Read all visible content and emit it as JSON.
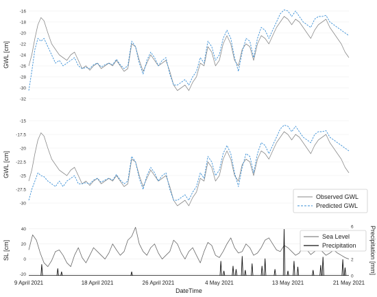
{
  "chart_data": [
    {
      "type": "line",
      "panel": "top",
      "ylabel": "GWL [cm]",
      "ylim": [
        -33,
        -15
      ],
      "yticks": [
        -16,
        -18,
        -20,
        -22,
        -24,
        -26,
        -28,
        -30,
        -32
      ],
      "grid": true,
      "series": [
        {
          "key": "observed",
          "color": "#8a8a8a",
          "style": "solid",
          "x": [
            0,
            0.4,
            0.8,
            1.2,
            1.6,
            2.0,
            2.5,
            3.0,
            3.5,
            4.0,
            4.5,
            5,
            5.5,
            6,
            6.5,
            7,
            7.5,
            8,
            8.5,
            9,
            9.5,
            10,
            10.5,
            11,
            11.5,
            12,
            12.5,
            13,
            13.5,
            14,
            14.5,
            15,
            15.5,
            16,
            16.5,
            17,
            17.5,
            18,
            18.5,
            19,
            19.5,
            20,
            20.5,
            21,
            21.5,
            22,
            22.5,
            23,
            23.5,
            24,
            24.5,
            25,
            25.5,
            26,
            26.5,
            27,
            27.5,
            28,
            28.5,
            29,
            29.5,
            30,
            30.5,
            31,
            31.5,
            32,
            32.5,
            33,
            33.5,
            34,
            34.5,
            35,
            35.5,
            36,
            36.5,
            37,
            37.5,
            38,
            38.5,
            39,
            39.5,
            40,
            40.5,
            41,
            41.5,
            42
          ],
          "y": [
            -26,
            -24,
            -21,
            -18.5,
            -17.2,
            -17.8,
            -20,
            -22,
            -23,
            -24,
            -24.5,
            -25,
            -24,
            -23.5,
            -25,
            -26.5,
            -26,
            -26.8,
            -26,
            -25.5,
            -26.5,
            -26,
            -25.5,
            -26,
            -25,
            -26,
            -27,
            -26.5,
            -22,
            -22.5,
            -25,
            -27,
            -25.5,
            -24,
            -25,
            -26,
            -25.5,
            -25,
            -27,
            -29.5,
            -30.5,
            -30,
            -29.5,
            -30.5,
            -29,
            -28,
            -25.5,
            -26,
            -22.5,
            -23.5,
            -26,
            -25,
            -22,
            -20.5,
            -22,
            -25,
            -26,
            -23,
            -22,
            -22.5,
            -25,
            -22,
            -20.5,
            -21,
            -22,
            -20.5,
            -19,
            -18,
            -17,
            -17.5,
            -18.5,
            -17.5,
            -18,
            -19,
            -20,
            -21,
            -19.5,
            -18.5,
            -18,
            -17.5,
            -19,
            -20,
            -21,
            -22,
            -23.5,
            -24.5
          ]
        },
        {
          "key": "predicted",
          "color": "#3a8fd6",
          "style": "dashed",
          "x": [
            0,
            0.4,
            0.8,
            1.2,
            1.6,
            2.0,
            2.5,
            3.0,
            3.5,
            4.0,
            4.5,
            5,
            5.5,
            6,
            6.5,
            7,
            7.5,
            8,
            8.5,
            9,
            9.5,
            10,
            10.5,
            11,
            11.5,
            12,
            12.5,
            13,
            13.5,
            14,
            14.5,
            15,
            15.5,
            16,
            16.5,
            17,
            17.5,
            18,
            18.5,
            19,
            19.5,
            20,
            20.5,
            21,
            21.5,
            22,
            22.5,
            23,
            23.5,
            24,
            24.5,
            25,
            25.5,
            26,
            26.5,
            27,
            27.5,
            28,
            28.5,
            29,
            29.5,
            30,
            30.5,
            31,
            31.5,
            32,
            32.5,
            33,
            33.5,
            34,
            34.5,
            35,
            35.5,
            36,
            36.5,
            37,
            37.5,
            38,
            38.5,
            39,
            39.5,
            40,
            40.5,
            41,
            41.5,
            42
          ],
          "y": [
            -30.5,
            -27,
            -23,
            -21,
            -21.5,
            -21,
            -22.5,
            -24,
            -25.5,
            -25,
            -26,
            -25.5,
            -25,
            -24.5,
            -26,
            -26.5,
            -26.3,
            -26.5,
            -25.8,
            -25.5,
            -26.2,
            -25.8,
            -25.5,
            -25.8,
            -24.8,
            -25.8,
            -26.5,
            -26,
            -21.5,
            -22.5,
            -25.5,
            -27.5,
            -25,
            -23.5,
            -24.5,
            -26,
            -25,
            -24.5,
            -27.5,
            -29.5,
            -29.5,
            -29,
            -28.5,
            -29.5,
            -28,
            -27,
            -24.5,
            -25.5,
            -21.5,
            -22.5,
            -25,
            -24,
            -21,
            -19.5,
            -21,
            -24.5,
            -27,
            -23.5,
            -21,
            -21.5,
            -24.5,
            -21,
            -19,
            -19.5,
            -21,
            -19.5,
            -18,
            -16.5,
            -15.8,
            -16,
            -17,
            -16,
            -17,
            -18,
            -18.5,
            -19,
            -17.5,
            -17,
            -17,
            -16.8,
            -18,
            -18.5,
            -19,
            -19.5,
            -20,
            -20.5
          ]
        }
      ]
    },
    {
      "type": "line",
      "panel": "middle",
      "ylabel": "GWL [cm]",
      "ylim": [
        -32,
        -14
      ],
      "yticks": [
        -15.0,
        -17.5,
        -20.0,
        -22.5,
        -25.0,
        -27.5,
        -30.0
      ],
      "grid": true,
      "legend_position": "bottom-right",
      "series": [
        {
          "key": "observed",
          "name": "Observed GWL",
          "color": "#8a8a8a",
          "style": "solid",
          "x": [
            0,
            0.4,
            0.8,
            1.2,
            1.6,
            2.0,
            2.5,
            3.0,
            3.5,
            4.0,
            4.5,
            5,
            5.5,
            6,
            6.5,
            7,
            7.5,
            8,
            8.5,
            9,
            9.5,
            10,
            10.5,
            11,
            11.5,
            12,
            12.5,
            13,
            13.5,
            14,
            14.5,
            15,
            15.5,
            16,
            16.5,
            17,
            17.5,
            18,
            18.5,
            19,
            19.5,
            20,
            20.5,
            21,
            21.5,
            22,
            22.5,
            23,
            23.5,
            24,
            24.5,
            25,
            25.5,
            26,
            26.5,
            27,
            27.5,
            28,
            28.5,
            29,
            29.5,
            30,
            30.5,
            31,
            31.5,
            32,
            32.5,
            33,
            33.5,
            34,
            34.5,
            35,
            35.5,
            36,
            36.5,
            37,
            37.5,
            38,
            38.5,
            39,
            39.5,
            40,
            40.5,
            41,
            41.5,
            42
          ],
          "y": [
            -26,
            -24,
            -21,
            -18.5,
            -17.2,
            -17.8,
            -20,
            -22,
            -23,
            -24,
            -24.5,
            -25,
            -24,
            -23.5,
            -25,
            -26.5,
            -26,
            -26.8,
            -26,
            -25.5,
            -26.5,
            -26,
            -25.5,
            -26,
            -25,
            -26,
            -27,
            -26.5,
            -22,
            -22.5,
            -25,
            -27,
            -25.5,
            -24,
            -25,
            -26,
            -25.5,
            -25,
            -27,
            -29.5,
            -30.5,
            -30,
            -29.5,
            -30.5,
            -29,
            -28,
            -25.5,
            -26,
            -22.5,
            -23.5,
            -26,
            -25,
            -22,
            -20.5,
            -22,
            -25,
            -26,
            -23,
            -22,
            -22.5,
            -25,
            -22,
            -20.5,
            -21,
            -22,
            -20.5,
            -19,
            -18,
            -17,
            -17.5,
            -18.5,
            -17.5,
            -18,
            -19,
            -20,
            -21,
            -19.5,
            -18.5,
            -18,
            -17.5,
            -19,
            -20,
            -21,
            -22,
            -23.5,
            -24.5
          ]
        },
        {
          "key": "predicted",
          "name": "Predicted GWL",
          "color": "#3a8fd6",
          "style": "dashed",
          "x": [
            0,
            0.4,
            0.8,
            1.2,
            1.6,
            2.0,
            2.5,
            3.0,
            3.5,
            4.0,
            4.5,
            5,
            5.5,
            6,
            6.5,
            7,
            7.5,
            8,
            8.5,
            9,
            9.5,
            10,
            10.5,
            11,
            11.5,
            12,
            12.5,
            13,
            13.5,
            14,
            14.5,
            15,
            15.5,
            16,
            16.5,
            17,
            17.5,
            18,
            18.5,
            19,
            19.5,
            20,
            20.5,
            21,
            21.5,
            22,
            22.5,
            23,
            23.5,
            24,
            24.5,
            25,
            25.5,
            26,
            26.5,
            27,
            27.5,
            28,
            28.5,
            29,
            29.5,
            30,
            30.5,
            31,
            31.5,
            32,
            32.5,
            33,
            33.5,
            34,
            34.5,
            35,
            35.5,
            36,
            36.5,
            37,
            37.5,
            38,
            38.5,
            39,
            39.5,
            40,
            40.5,
            41,
            41.5,
            42
          ],
          "y": [
            -29.5,
            -27.5,
            -26,
            -24.5,
            -25,
            -25.2,
            -26,
            -26.5,
            -27,
            -26,
            -27,
            -26,
            -25.5,
            -25,
            -26.5,
            -26.5,
            -26.3,
            -26.5,
            -25.8,
            -25.5,
            -26.2,
            -25.8,
            -25.5,
            -25.8,
            -24.8,
            -25.8,
            -26.5,
            -26,
            -21.5,
            -22.5,
            -25.5,
            -27.5,
            -25,
            -23.5,
            -24.5,
            -26,
            -25,
            -24.5,
            -27.5,
            -29.5,
            -29.5,
            -29,
            -28.5,
            -29.5,
            -28,
            -27,
            -24.5,
            -25.5,
            -21.5,
            -22.5,
            -25,
            -24,
            -21,
            -19.5,
            -21,
            -24.5,
            -27,
            -23.5,
            -21,
            -21.5,
            -24.5,
            -21,
            -19,
            -19.5,
            -21,
            -19.5,
            -18,
            -16.5,
            -15.8,
            -16,
            -17,
            -16,
            -17,
            -18,
            -18.5,
            -19,
            -17.5,
            -17,
            -17,
            -16.8,
            -18,
            -18.5,
            -19,
            -19.5,
            -20,
            -20.5
          ]
        }
      ]
    },
    {
      "type": "line",
      "panel": "bottom",
      "xlabel": "DateTime",
      "ylabel": "SL [cm]",
      "ylabel_right": "Precipitation [mm]",
      "ylim": [
        -22,
        45
      ],
      "yticks": [
        40,
        20,
        0,
        -20
      ],
      "ylim_right": [
        0,
        6.2
      ],
      "yticks_right": [
        6,
        4,
        2,
        0
      ],
      "grid": true,
      "legend_position": "top-right",
      "xticks": [
        {
          "day": 0,
          "label": "9 April 2021"
        },
        {
          "day": 9,
          "label": "18 April 2021"
        },
        {
          "day": 17,
          "label": "26 April 2021"
        },
        {
          "day": 25,
          "label": "4 May 2021"
        },
        {
          "day": 34,
          "label": "13 May 2021"
        },
        {
          "day": 42,
          "label": "21 May 2021"
        }
      ],
      "series": [
        {
          "key": "sealevel",
          "name": "Sea Level",
          "color": "#666666",
          "style": "solid",
          "x": [
            0,
            0.5,
            1,
            1.5,
            2,
            2.5,
            3,
            3.5,
            4,
            4.5,
            5,
            5.5,
            6,
            6.5,
            7,
            7.5,
            8,
            8.5,
            9,
            9.5,
            10,
            10.5,
            11,
            11.5,
            12,
            12.5,
            13,
            13.5,
            14,
            14.5,
            15,
            15.5,
            16,
            16.5,
            17,
            17.5,
            18,
            18.5,
            19,
            19.5,
            20,
            20.5,
            21,
            21.5,
            22,
            22.5,
            23,
            23.5,
            24,
            24.5,
            25,
            25.5,
            26,
            26.5,
            27,
            27.5,
            28,
            28.5,
            29,
            29.5,
            30,
            30.5,
            31,
            31.5,
            32,
            32.5,
            33,
            33.5,
            34,
            34.5,
            35,
            35.5,
            36,
            36.5,
            37,
            37.5,
            38,
            38.5,
            39,
            39.5,
            40,
            40.5,
            41,
            41.5,
            42
          ],
          "y": [
            12,
            32,
            25,
            8,
            -5,
            -10,
            -2,
            10,
            12,
            5,
            -5,
            -10,
            5,
            15,
            2,
            -5,
            5,
            15,
            10,
            5,
            0,
            8,
            20,
            12,
            5,
            10,
            25,
            30,
            42,
            20,
            10,
            5,
            15,
            20,
            8,
            0,
            5,
            10,
            25,
            20,
            8,
            0,
            10,
            15,
            5,
            -5,
            10,
            22,
            18,
            5,
            2,
            10,
            20,
            28,
            15,
            8,
            10,
            20,
            15,
            5,
            8,
            15,
            25,
            28,
            20,
            12,
            10,
            18,
            15,
            10,
            5,
            8,
            18,
            12,
            6,
            10,
            15,
            10,
            5,
            8,
            12,
            8,
            5,
            2,
            0
          ]
        },
        {
          "key": "precip",
          "name": "Precipitation",
          "color": "#111111",
          "style": "solid",
          "axis": "right",
          "events": [
            [
              1.7,
              1.4
            ],
            [
              3.8,
              0.9
            ],
            [
              4.3,
              0.5
            ],
            [
              13.5,
              0.5
            ],
            [
              25.2,
              1.8
            ],
            [
              25.6,
              0.6
            ],
            [
              26.8,
              1.2
            ],
            [
              27.2,
              0.8
            ],
            [
              28.0,
              2.4
            ],
            [
              28.4,
              0.7
            ],
            [
              29.3,
              1.5
            ],
            [
              30.6,
              1.2
            ],
            [
              31.0,
              2.1
            ],
            [
              32.3,
              0.8
            ],
            [
              33.5,
              5.7
            ],
            [
              34.0,
              0.6
            ],
            [
              34.8,
              1.8
            ],
            [
              35.3,
              1.1
            ],
            [
              37.3,
              0.7
            ],
            [
              38.3,
              1.3
            ],
            [
              38.6,
              2.3
            ],
            [
              41.2,
              2.0
            ],
            [
              41.5,
              1.0
            ]
          ]
        }
      ]
    }
  ]
}
